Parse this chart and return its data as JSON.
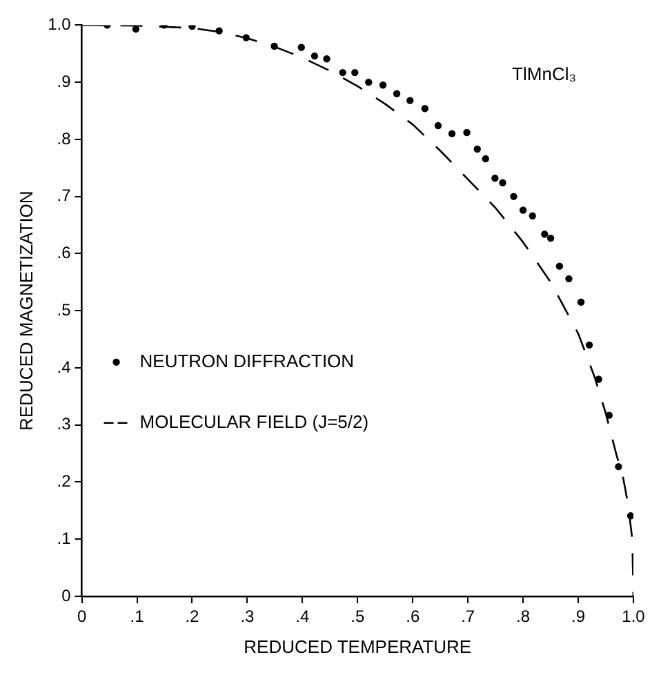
{
  "chart_data": {
    "type": "scatter",
    "xlabel": "REDUCED TEMPERATURE",
    "ylabel": "REDUCED MAGNETIZATION",
    "annotations": [
      "TlMnCl₃"
    ],
    "xlim": [
      0,
      1.0
    ],
    "ylim": [
      0,
      1.0
    ],
    "xticks": [
      0,
      {
        "value": 0.1,
        "label": ".1"
      },
      {
        "value": 0.2,
        "label": ".2"
      },
      {
        "value": 0.3,
        "label": ".3"
      },
      {
        "value": 0.4,
        "label": ".4"
      },
      {
        "value": 0.5,
        "label": ".5"
      },
      {
        "value": 0.6,
        "label": ".6"
      },
      {
        "value": 0.7,
        "label": ".7"
      },
      {
        "value": 0.8,
        "label": ".8"
      },
      {
        "value": 0.9,
        "label": ".9"
      },
      {
        "value": 1.0,
        "label": "1.0"
      }
    ],
    "yticks": [
      0,
      {
        "value": 0.1,
        "label": ".1"
      },
      {
        "value": 0.2,
        "label": ".2"
      },
      {
        "value": 0.3,
        "label": ".3"
      },
      {
        "value": 0.4,
        "label": ".4"
      },
      {
        "value": 0.5,
        "label": ".5"
      },
      {
        "value": 0.6,
        "label": ".6"
      },
      {
        "value": 0.7,
        "label": ".7"
      },
      {
        "value": 0.8,
        "label": ".8"
      },
      {
        "value": 0.9,
        "label": ".9"
      },
      {
        "value": 1.0,
        "label": "1.0"
      }
    ],
    "grid": false,
    "legend": "left",
    "series": [
      {
        "name": "NEUTRON DIFFRACTION",
        "type": "scatter",
        "marker": "circle",
        "color": "#000000",
        "x": [
          0.046,
          0.098,
          0.149,
          0.2,
          0.249,
          0.298,
          0.349,
          0.398,
          0.422,
          0.444,
          0.473,
          0.495,
          0.52,
          0.546,
          0.571,
          0.595,
          0.622,
          0.646,
          0.671,
          0.698,
          0.717,
          0.732,
          0.749,
          0.763,
          0.783,
          0.8,
          0.817,
          0.839,
          0.85,
          0.866,
          0.883,
          0.905,
          0.92,
          0.937,
          0.956,
          0.973,
          0.995
        ],
        "values": [
          1.0,
          0.993,
          1.0,
          0.998,
          0.99,
          0.978,
          0.963,
          0.961,
          0.946,
          0.941,
          0.917,
          0.917,
          0.9,
          0.895,
          0.88,
          0.868,
          0.854,
          0.824,
          0.81,
          0.812,
          0.783,
          0.766,
          0.732,
          0.724,
          0.7,
          0.676,
          0.666,
          0.634,
          0.627,
          0.578,
          0.556,
          0.515,
          0.44,
          0.38,
          0.317,
          0.227,
          0.141
        ]
      },
      {
        "name": "MOLECULAR FIELD (J=5/2)",
        "type": "line",
        "line_style": "dashed",
        "marker": "none",
        "color": "#000000",
        "x": [
          0,
          0.1,
          0.2,
          0.25,
          0.3,
          0.35,
          0.4,
          0.45,
          0.5,
          0.55,
          0.6,
          0.65,
          0.7,
          0.75,
          0.8,
          0.85,
          0.9,
          0.93,
          0.95,
          0.97,
          0.98,
          0.99,
          0.998,
          1.0
        ],
        "values": [
          1.0,
          0.999,
          0.995,
          0.988,
          0.977,
          0.962,
          0.943,
          0.92,
          0.893,
          0.862,
          0.826,
          0.78,
          0.73,
          0.68,
          0.62,
          0.55,
          0.46,
          0.383,
          0.32,
          0.245,
          0.215,
          0.163,
          0.1,
          0
        ]
      }
    ]
  }
}
